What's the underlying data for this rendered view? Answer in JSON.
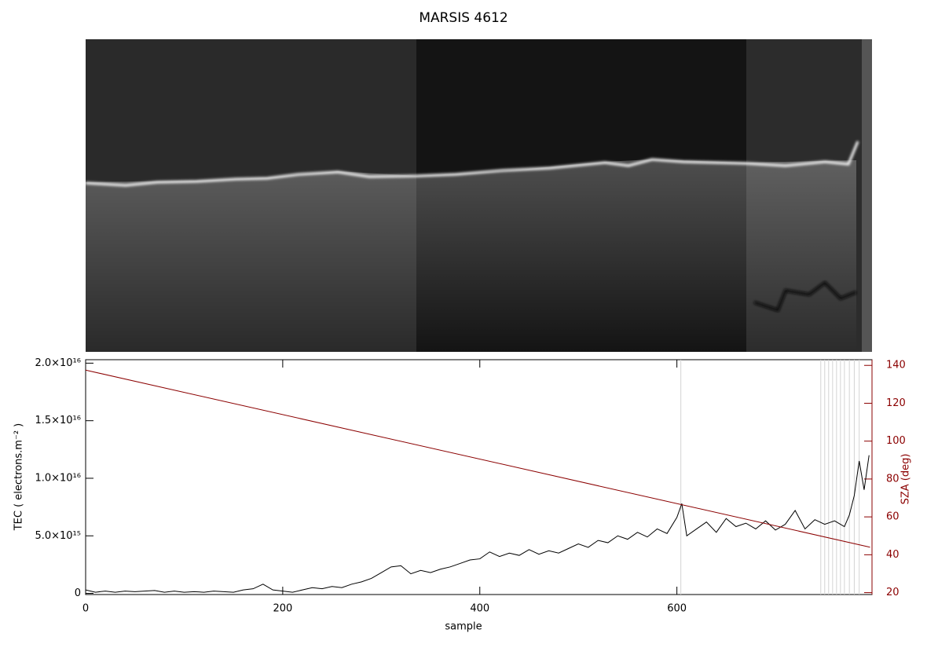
{
  "chart_data": {
    "type": "line",
    "title": "MARSIS 4612",
    "xlabel": "sample",
    "ylabel": "TEC ( electrons.m⁻² )",
    "y2label": "SZA (deg)",
    "xlim": [
      0,
      798
    ],
    "xticks": [
      0,
      200,
      400,
      600
    ],
    "ylim": [
      -100000000000000.0,
      2.03e+16
    ],
    "yticks": [
      0,
      {
        "value": 5000000000000000.0,
        "label": "5.0×10¹⁵"
      },
      {
        "value": 1e+16,
        "label": "1.0×10¹⁶"
      },
      {
        "value": 1.5e+16,
        "label": "1.5×10¹⁶"
      },
      {
        "value": 2e+16,
        "label": "2.0×10¹⁶"
      }
    ],
    "y2lim": [
      19,
      143
    ],
    "y2ticks": [
      20,
      40,
      60,
      80,
      100,
      120,
      140
    ],
    "vlines": [
      604,
      746,
      750,
      754,
      758,
      762,
      766,
      770,
      775,
      780,
      785
    ],
    "vline_color": "#d3d3d3",
    "series": [
      {
        "color": "#000000",
        "x": [
          0,
          10,
          20,
          30,
          40,
          50,
          60,
          70,
          80,
          90,
          100,
          110,
          120,
          130,
          140,
          150,
          160,
          170,
          180,
          190,
          200,
          210,
          220,
          230,
          240,
          250,
          260,
          270,
          280,
          290,
          300,
          310,
          320,
          330,
          340,
          350,
          360,
          370,
          380,
          390,
          400,
          410,
          420,
          430,
          440,
          450,
          460,
          470,
          480,
          490,
          500,
          510,
          520,
          530,
          540,
          550,
          560,
          570,
          580,
          590,
          600,
          605,
          610,
          620,
          630,
          640,
          650,
          660,
          670,
          680,
          690,
          700,
          710,
          720,
          730,
          740,
          750,
          760,
          770,
          775,
          780,
          785,
          790,
          795
        ],
        "values": [
          300000000000000.0,
          100000000000000.0,
          200000000000000.0,
          100000000000000.0,
          200000000000000.0,
          150000000000000.0,
          200000000000000.0,
          250000000000000.0,
          100000000000000.0,
          200000000000000.0,
          100000000000000.0,
          150000000000000.0,
          100000000000000.0,
          200000000000000.0,
          150000000000000.0,
          100000000000000.0,
          300000000000000.0,
          400000000000000.0,
          800000000000000.0,
          300000000000000.0,
          200000000000000.0,
          100000000000000.0,
          300000000000000.0,
          500000000000000.0,
          400000000000000.0,
          600000000000000.0,
          500000000000000.0,
          800000000000000.0,
          1000000000000000.0,
          1300000000000000.0,
          1800000000000000.0,
          2300000000000000.0,
          2400000000000000.0,
          1700000000000000.0,
          2000000000000000.0,
          1800000000000000.0,
          2100000000000000.0,
          2300000000000000.0,
          2600000000000000.0,
          2900000000000000.0,
          3000000000000000.0,
          3600000000000000.0,
          3200000000000000.0,
          3500000000000000.0,
          3300000000000000.0,
          3800000000000000.0,
          3400000000000000.0,
          3700000000000000.0,
          3500000000000000.0,
          3900000000000000.0,
          4300000000000000.0,
          4000000000000000.0,
          4600000000000000.0,
          4400000000000000.0,
          5000000000000000.0,
          4700000000000000.0,
          5300000000000000.0,
          4900000000000000.0,
          5600000000000000.0,
          5200000000000000.0,
          6600000000000000.0,
          7800000000000000.0,
          5000000000000000.0,
          5600000000000000.0,
          6200000000000000.0,
          5300000000000000.0,
          6500000000000000.0,
          5800000000000000.0,
          6100000000000000.0,
          5600000000000000.0,
          6300000000000000.0,
          5500000000000000.0,
          6000000000000000.0,
          7200000000000000.0,
          5600000000000000.0,
          6400000000000000.0,
          6000000000000000.0,
          6300000000000000.0,
          5800000000000000.0,
          6800000000000000.0,
          8500000000000000.0,
          1.15e+16,
          9000000000000000.0,
          1.2e+16
        ]
      },
      {
        "color": "#8b0000",
        "axis": "y2",
        "x": [
          0,
          796
        ],
        "values": [
          137.5,
          44
        ]
      }
    ]
  }
}
